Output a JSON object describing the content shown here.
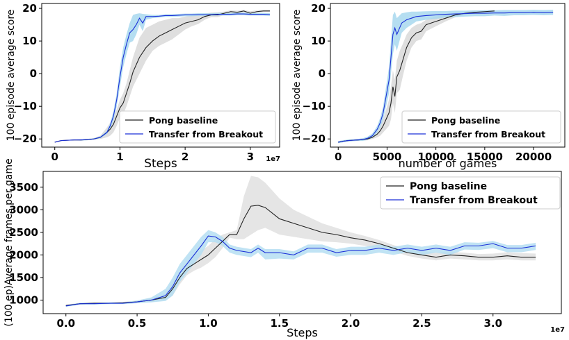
{
  "chart_data": [
    {
      "type": "line",
      "id": "panel-a",
      "xlabel": "Steps",
      "ylabel": "100 episode average score",
      "x_multiplier": "1e7",
      "xlim": [
        -0.2,
        3.45
      ],
      "ylim": [
        -22.5,
        21.5
      ],
      "xticks": [
        0,
        1,
        2,
        3
      ],
      "xtick_labels": [
        "0",
        "1",
        "2",
        "3"
      ],
      "yticks": [
        -20,
        -10,
        0,
        10,
        20
      ],
      "ytick_labels": [
        "−20",
        "−10",
        "0",
        "10",
        "20"
      ],
      "legend": {
        "position": "lower-right",
        "entries": [
          "Pong baseline",
          "Transfer from Breakout"
        ]
      },
      "series": [
        {
          "name": "Pong baseline",
          "color": "#222222",
          "band_color": "#d9d9d9",
          "x": [
            0.0,
            0.1,
            0.2,
            0.3,
            0.4,
            0.5,
            0.6,
            0.7,
            0.8,
            0.85,
            0.9,
            0.95,
            1.0,
            1.05,
            1.1,
            1.15,
            1.2,
            1.3,
            1.4,
            1.5,
            1.6,
            1.7,
            1.8,
            1.9,
            2.0,
            2.1,
            2.2,
            2.3,
            2.4,
            2.5,
            2.6,
            2.7,
            2.8,
            2.9,
            3.0,
            3.1,
            3.2,
            3.3
          ],
          "y": [
            -21,
            -20.5,
            -20.4,
            -20.3,
            -20.3,
            -20.2,
            -20,
            -19.5,
            -18,
            -17,
            -15.5,
            -13,
            -10.5,
            -9,
            -6,
            -3,
            0.5,
            5,
            8,
            10,
            11.5,
            12.5,
            13.5,
            14.5,
            15.5,
            16,
            16.5,
            17.5,
            18,
            18,
            18.5,
            19,
            18.8,
            19.2,
            18.5,
            19,
            19.2,
            19.2
          ],
          "upper": [
            -21,
            -20.5,
            -20.3,
            -20.2,
            -20.1,
            -20,
            -19.7,
            -19,
            -16.5,
            -15,
            -13,
            -11,
            -8,
            -6,
            -3,
            1,
            5,
            11,
            14,
            15,
            16,
            16.5,
            17,
            17,
            17.5,
            17.8,
            18,
            18.4,
            18.7,
            18.8,
            19,
            19.4,
            19.3,
            19.5,
            19.1,
            19.4,
            19.5,
            19.5
          ],
          "lower": [
            -21,
            -20.5,
            -20.5,
            -20.4,
            -20.5,
            -20.4,
            -20.3,
            -20,
            -19.5,
            -19,
            -18,
            -16,
            -13.5,
            -12.5,
            -10,
            -7,
            -4,
            0,
            4,
            7,
            8.5,
            9.5,
            10.5,
            12,
            13.5,
            14.5,
            15.2,
            16.5,
            17.3,
            17.3,
            18,
            18.6,
            18.3,
            18.8,
            18,
            18.6,
            18.9,
            18.9
          ]
        },
        {
          "name": "Transfer from Breakout",
          "color": "#1a2fd8",
          "band_color": "#a8d8ef",
          "x": [
            0.0,
            0.1,
            0.2,
            0.3,
            0.4,
            0.5,
            0.6,
            0.7,
            0.8,
            0.85,
            0.9,
            0.95,
            1.0,
            1.05,
            1.1,
            1.15,
            1.2,
            1.25,
            1.3,
            1.35,
            1.4,
            1.5,
            1.6,
            1.7,
            1.8,
            1.9,
            2.0,
            2.1,
            2.2,
            2.3,
            2.4,
            2.5,
            2.6,
            2.7,
            2.8,
            2.9,
            3.0,
            3.1,
            3.2,
            3.3
          ],
          "y": [
            -21,
            -20.5,
            -20.4,
            -20.3,
            -20.3,
            -20.2,
            -20,
            -19.5,
            -18,
            -16,
            -13,
            -8,
            -1,
            5,
            9,
            12.5,
            13.5,
            15,
            17,
            15.5,
            17.5,
            17.5,
            17.6,
            17.8,
            17.8,
            17.9,
            18,
            18,
            18.1,
            18.1,
            18.1,
            18.2,
            18.2,
            18.2,
            18.3,
            18.3,
            18.2,
            18.2,
            18.2,
            18.1
          ],
          "upper": [
            -21,
            -20.5,
            -20.3,
            -20.2,
            -20.1,
            -20,
            -19.8,
            -19.2,
            -17.5,
            -15.2,
            -11.5,
            -6,
            2,
            8,
            12,
            15.5,
            18,
            18.3,
            18.5,
            18.3,
            18.2,
            18,
            18,
            18.2,
            18.2,
            18.3,
            18.4,
            18.4,
            18.5,
            18.5,
            18.5,
            18.6,
            18.6,
            18.6,
            18.7,
            18.7,
            18.6,
            18.6,
            18.6,
            18.5
          ],
          "lower": [
            -21,
            -20.5,
            -20.5,
            -20.4,
            -20.5,
            -20.4,
            -20.2,
            -19.8,
            -18.5,
            -17,
            -14.5,
            -10,
            -4,
            2,
            6,
            9.5,
            10,
            12,
            15,
            13,
            16.5,
            17,
            17.2,
            17.4,
            17.4,
            17.5,
            17.6,
            17.6,
            17.7,
            17.7,
            17.7,
            17.8,
            17.8,
            17.8,
            17.9,
            17.9,
            17.8,
            17.8,
            17.8,
            17.7
          ]
        }
      ]
    },
    {
      "type": "line",
      "id": "panel-b",
      "xlabel": "number of games",
      "ylabel": "100 episode average score",
      "xlim": [
        -800,
        23200
      ],
      "ylim": [
        -22.5,
        21.5
      ],
      "xticks": [
        0,
        5000,
        10000,
        15000,
        20000
      ],
      "xtick_labels": [
        "0",
        "5000",
        "10000",
        "15000",
        "20000"
      ],
      "yticks": [
        -20,
        -10,
        0,
        10,
        20
      ],
      "ytick_labels": [
        "−20",
        "−10",
        "0",
        "10",
        "20"
      ],
      "legend": {
        "position": "lower-right",
        "entries": [
          "Pong baseline",
          "Transfer from Breakout"
        ]
      },
      "series": [
        {
          "name": "Pong baseline",
          "color": "#222222",
          "band_color": "#d9d9d9",
          "x": [
            0,
            500,
            1000,
            1500,
            2000,
            2500,
            3000,
            3500,
            4000,
            4300,
            4600,
            4900,
            5200,
            5400,
            5600,
            5800,
            6000,
            6300,
            6600,
            7000,
            7500,
            8000,
            8500,
            9000,
            10000,
            11000,
            12000,
            13000,
            14000,
            15000,
            16000
          ],
          "y": [
            -21,
            -20.7,
            -20.5,
            -20.4,
            -20.3,
            -20.2,
            -20,
            -19.5,
            -18.5,
            -17.5,
            -16,
            -14,
            -12,
            -9,
            -4,
            -7,
            -1,
            1,
            4,
            8,
            11,
            12.5,
            13,
            15,
            16,
            17,
            18,
            18.5,
            18.8,
            19,
            19.2
          ],
          "upper": [
            -20.7,
            -20.4,
            -20.2,
            -20.1,
            -20,
            -19.9,
            -19.6,
            -19,
            -17.5,
            -16,
            -14,
            -11,
            -8,
            -4,
            1,
            -2,
            4,
            7,
            9,
            12,
            14,
            15,
            15.5,
            16.5,
            17.5,
            18,
            18.6,
            19,
            19.2,
            19.4,
            19.5
          ],
          "lower": [
            -21.3,
            -21,
            -20.8,
            -20.7,
            -20.6,
            -20.5,
            -20.4,
            -20,
            -19.5,
            -19,
            -18,
            -17,
            -16,
            -14,
            -9,
            -12,
            -6,
            -5,
            -1,
            4,
            8,
            10,
            10.5,
            13,
            14.5,
            16,
            17.3,
            18,
            18.4,
            18.6,
            18.9
          ]
        },
        {
          "name": "Transfer from Breakout",
          "color": "#1a2fd8",
          "band_color": "#a8d8ef",
          "x": [
            0,
            500,
            1000,
            1500,
            2000,
            2500,
            3000,
            3500,
            4000,
            4300,
            4600,
            4900,
            5200,
            5400,
            5600,
            5800,
            6000,
            6500,
            7000,
            7500,
            8000,
            9000,
            10000,
            11000,
            12000,
            13000,
            14000,
            15000,
            16000,
            17000,
            18000,
            19000,
            20000,
            21000,
            22000
          ],
          "y": [
            -21,
            -20.7,
            -20.5,
            -20.4,
            -20.3,
            -20.2,
            -19.8,
            -19,
            -17,
            -15,
            -12,
            -7,
            -2,
            5,
            12,
            14,
            12,
            15.5,
            16.5,
            17,
            17.5,
            17.8,
            18,
            18.2,
            18.3,
            18.4,
            18.5,
            18.5,
            18.6,
            18.6,
            18.7,
            18.7,
            18.8,
            18.7,
            18.8
          ],
          "upper": [
            -20.7,
            -20.4,
            -20.2,
            -20.1,
            -20,
            -19.8,
            -19.3,
            -18.3,
            -16,
            -13.5,
            -10,
            -4,
            2,
            10,
            18,
            19,
            17,
            18.5,
            18.8,
            19,
            19,
            19.1,
            19.2,
            19.2,
            19.3,
            19.3,
            19.4,
            19.4,
            19.4,
            19.5,
            19.5,
            19.5,
            19.6,
            19.5,
            19.6
          ],
          "lower": [
            -21.3,
            -21,
            -20.8,
            -20.7,
            -20.6,
            -20.6,
            -20.3,
            -19.7,
            -18,
            -16.5,
            -14,
            -10,
            -6,
            0,
            6,
            9,
            7,
            12.5,
            14,
            15,
            16,
            16.5,
            16.8,
            17.2,
            17.3,
            17.5,
            17.6,
            17.6,
            17.8,
            17.7,
            17.9,
            17.9,
            18,
            17.9,
            18
          ]
        }
      ]
    },
    {
      "type": "line",
      "id": "panel-c",
      "xlabel": "Steps",
      "ylabel": "(100 ep)Average frames per game",
      "x_multiplier": "1e7",
      "xlim": [
        -0.16,
        3.48
      ],
      "ylim": [
        700,
        3850
      ],
      "xticks": [
        0.0,
        0.5,
        1.0,
        1.5,
        2.0,
        2.5,
        3.0
      ],
      "xtick_labels": [
        "0.0",
        "0.5",
        "1.0",
        "1.5",
        "2.0",
        "2.5",
        "3.0"
      ],
      "yticks": [
        1000,
        1500,
        2000,
        2500,
        3000,
        3500
      ],
      "ytick_labels": [
        "1000",
        "1500",
        "2000",
        "2500",
        "3000",
        "3500"
      ],
      "legend": {
        "position": "top-right",
        "entries": [
          "Pong baseline",
          "Transfer from Breakout"
        ]
      },
      "series": [
        {
          "name": "Pong baseline",
          "color": "#222222",
          "band_color": "#e0e0e0",
          "x": [
            0.0,
            0.1,
            0.2,
            0.3,
            0.4,
            0.5,
            0.6,
            0.7,
            0.75,
            0.8,
            0.85,
            0.9,
            0.95,
            1.0,
            1.05,
            1.1,
            1.15,
            1.2,
            1.25,
            1.3,
            1.35,
            1.4,
            1.5,
            1.6,
            1.7,
            1.8,
            1.9,
            2.0,
            2.1,
            2.2,
            2.3,
            2.4,
            2.5,
            2.6,
            2.7,
            2.8,
            2.9,
            3.0,
            3.1,
            3.2,
            3.3
          ],
          "y": [
            880,
            920,
            930,
            930,
            940,
            960,
            1000,
            1060,
            1250,
            1500,
            1700,
            1800,
            1900,
            2000,
            2150,
            2300,
            2450,
            2450,
            2800,
            3080,
            3100,
            3050,
            2800,
            2700,
            2600,
            2500,
            2450,
            2380,
            2330,
            2250,
            2150,
            2050,
            2000,
            1950,
            2000,
            1980,
            1950,
            1950,
            1980,
            1950,
            1950
          ],
          "upper": [
            900,
            940,
            950,
            950,
            960,
            990,
            1050,
            1150,
            1400,
            1650,
            1850,
            2000,
            2100,
            2200,
            2350,
            2450,
            2500,
            2550,
            3300,
            3750,
            3720,
            3600,
            3250,
            3000,
            2850,
            2700,
            2600,
            2500,
            2420,
            2330,
            2220,
            2120,
            2080,
            2050,
            2070,
            2050,
            2020,
            2030,
            2060,
            2040,
            2030
          ],
          "lower": [
            860,
            900,
            910,
            910,
            920,
            940,
            960,
            1000,
            1100,
            1350,
            1550,
            1650,
            1720,
            1820,
            1950,
            2150,
            2380,
            2350,
            2350,
            2450,
            2550,
            2600,
            2450,
            2400,
            2350,
            2300,
            2280,
            2250,
            2200,
            2150,
            2080,
            1980,
            1920,
            1880,
            1920,
            1900,
            1880,
            1880,
            1900,
            1880,
            1880
          ]
        },
        {
          "name": "Transfer from Breakout",
          "color": "#1a2fd8",
          "band_color": "#b5def2",
          "x": [
            0.0,
            0.1,
            0.2,
            0.3,
            0.4,
            0.5,
            0.6,
            0.7,
            0.75,
            0.8,
            0.85,
            0.9,
            0.95,
            1.0,
            1.05,
            1.1,
            1.15,
            1.2,
            1.3,
            1.35,
            1.4,
            1.5,
            1.6,
            1.7,
            1.8,
            1.9,
            2.0,
            2.1,
            2.2,
            2.3,
            2.4,
            2.5,
            2.6,
            2.7,
            2.8,
            2.9,
            3.0,
            3.1,
            3.2,
            3.3
          ],
          "y": [
            870,
            920,
            920,
            930,
            930,
            960,
            1000,
            1100,
            1300,
            1600,
            1800,
            2000,
            2200,
            2420,
            2400,
            2300,
            2150,
            2100,
            2050,
            2150,
            2050,
            2050,
            2000,
            2150,
            2150,
            2050,
            2100,
            2100,
            2150,
            2100,
            2150,
            2100,
            2150,
            2100,
            2200,
            2200,
            2250,
            2150,
            2150,
            2200
          ],
          "upper": [
            890,
            940,
            940,
            950,
            950,
            990,
            1060,
            1250,
            1500,
            1800,
            2000,
            2200,
            2400,
            2550,
            2500,
            2400,
            2230,
            2180,
            2130,
            2230,
            2130,
            2130,
            2080,
            2230,
            2230,
            2130,
            2180,
            2180,
            2230,
            2180,
            2230,
            2180,
            2230,
            2180,
            2280,
            2270,
            2310,
            2220,
            2220,
            2270
          ],
          "lower": [
            850,
            900,
            900,
            910,
            910,
            930,
            950,
            980,
            1100,
            1400,
            1600,
            1800,
            2000,
            2280,
            2280,
            2200,
            2050,
            2000,
            1950,
            2050,
            1900,
            1920,
            1900,
            2050,
            2050,
            1960,
            2000,
            2000,
            2050,
            2000,
            2060,
            2000,
            2050,
            2000,
            2120,
            2110,
            2150,
            2060,
            2060,
            2110
          ]
        }
      ]
    }
  ]
}
